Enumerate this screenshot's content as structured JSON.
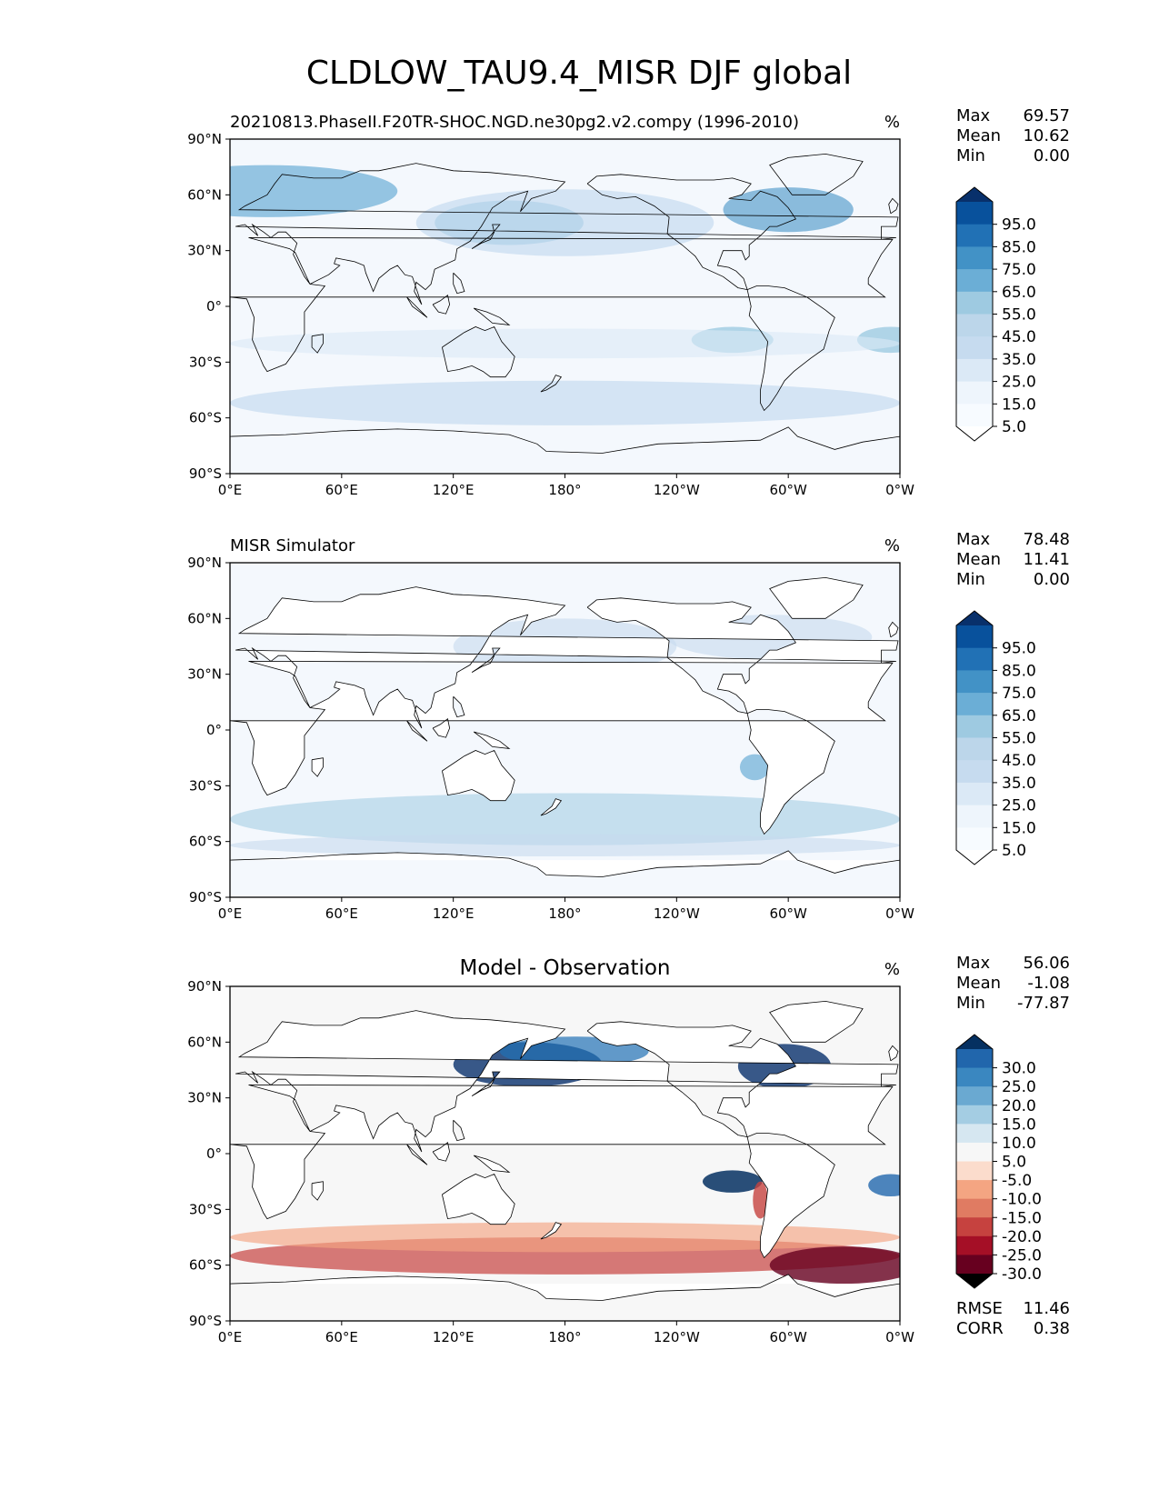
{
  "title": "CLDLOW_TAU9.4_MISR DJF global",
  "axes": {
    "lat_labels": [
      "90°N",
      "60°N",
      "30°N",
      "0°",
      "30°S",
      "60°S",
      "90°S"
    ],
    "lon_labels": [
      "0°E",
      "60°E",
      "120°E",
      "180°",
      "120°W",
      "60°W",
      "0°W"
    ]
  },
  "panels": [
    {
      "id": "model",
      "title_left": "20210813.PhaseII.F20TR-SHOC.NGD.ne30pg2.v2.compy (1996-2010)",
      "title_center": "",
      "units": "%",
      "stats": [
        {
          "label": "Max",
          "value": "69.57"
        },
        {
          "label": "Mean",
          "value": "10.62"
        },
        {
          "label": "Min",
          "value": "0.00"
        }
      ],
      "colorbar": {
        "labels": [
          "95.0",
          "85.0",
          "75.0",
          "65.0",
          "55.0",
          "45.0",
          "35.0",
          "25.0",
          "15.0",
          "5.0"
        ],
        "colors": [
          "#08306b",
          "#08519c",
          "#2171b5",
          "#4292c6",
          "#6baed6",
          "#9ecae1",
          "#bcd6ea",
          "#c6dbef",
          "#dbe9f6",
          "#eef5fc",
          "#f7fbff",
          "#ffffff"
        ]
      },
      "footer": []
    },
    {
      "id": "obs",
      "title_left": "MISR Simulator",
      "title_center": "",
      "units": "%",
      "stats": [
        {
          "label": "Max",
          "value": "78.48"
        },
        {
          "label": "Mean",
          "value": "11.41"
        },
        {
          "label": "Min",
          "value": "0.00"
        }
      ],
      "colorbar": {
        "labels": [
          "95.0",
          "85.0",
          "75.0",
          "65.0",
          "55.0",
          "45.0",
          "35.0",
          "25.0",
          "15.0",
          "5.0"
        ],
        "colors": [
          "#08306b",
          "#08519c",
          "#2171b5",
          "#4292c6",
          "#6baed6",
          "#9ecae1",
          "#bcd6ea",
          "#c6dbef",
          "#dbe9f6",
          "#eef5fc",
          "#f7fbff",
          "#ffffff"
        ]
      },
      "footer": []
    },
    {
      "id": "diff",
      "title_left": "",
      "title_center": "Model - Observation",
      "units": "%",
      "stats": [
        {
          "label": "Max",
          "value": "56.06"
        },
        {
          "label": "Mean",
          "value": "-1.08"
        },
        {
          "label": "Min",
          "value": "-77.87"
        }
      ],
      "colorbar": {
        "labels": [
          "30.0",
          "25.0",
          "20.0",
          "15.0",
          "10.0",
          "5.0",
          "-5.0",
          "-10.0",
          "-15.0",
          "-20.0",
          "-25.0",
          "-30.0"
        ],
        "colors": [
          "#053061",
          "#2166ac",
          "#3a87c0",
          "#6aa9d1",
          "#a4cde3",
          "#d6e7f1",
          "#f7f7f7",
          "#fbdccc",
          "#f4a582",
          "#e07b62",
          "#c6423f",
          "#a50f26",
          "#67001f"
        ]
      },
      "footer": [
        {
          "label": "RMSE",
          "value": "11.46"
        },
        {
          "label": "CORR",
          "value": "0.38"
        }
      ]
    }
  ]
}
